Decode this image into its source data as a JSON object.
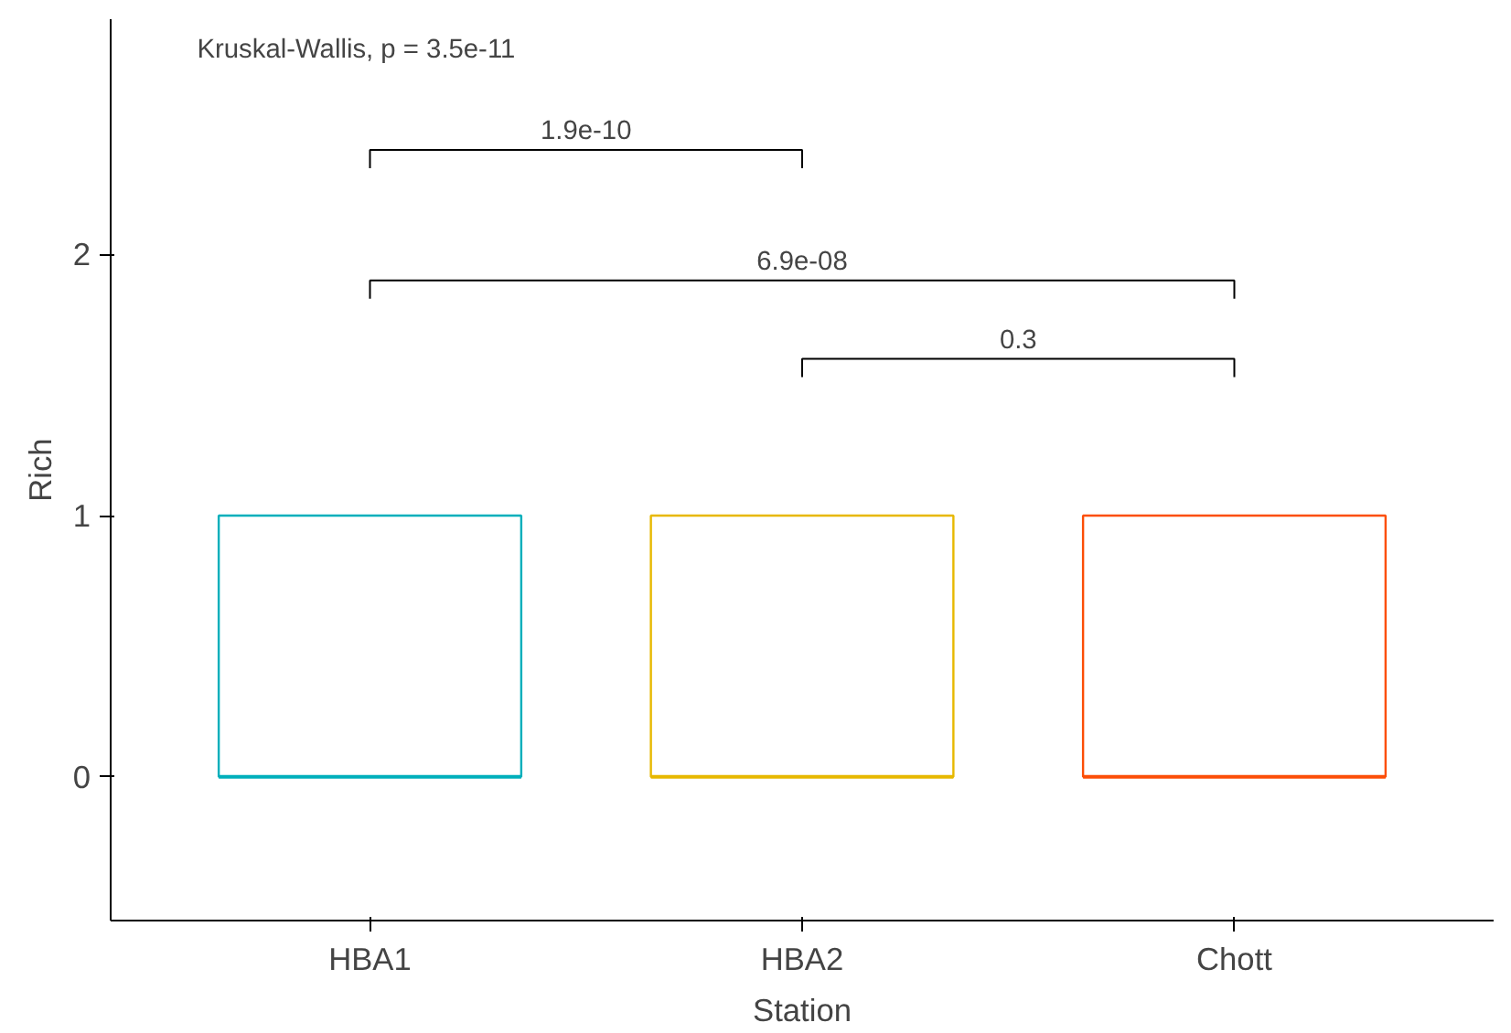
{
  "chart_data": {
    "type": "box",
    "xlabel": "Station",
    "ylabel": "Rich",
    "categories": [
      "HBA1",
      "HBA2",
      "Chott"
    ],
    "colors": [
      "#00afbb",
      "#e7b800",
      "#fc4e07"
    ],
    "boxes": [
      {
        "low": 0,
        "q1": 0,
        "median": 0,
        "q3": 1,
        "high": 1
      },
      {
        "low": 0,
        "q1": 0,
        "median": 0,
        "q3": 1,
        "high": 1
      },
      {
        "low": 0,
        "q1": 0,
        "median": 0,
        "q3": 1,
        "high": 1
      }
    ],
    "ylim": [
      -0.55,
      2.9
    ],
    "yticks": [
      0,
      1,
      2
    ],
    "grid": false,
    "annotations": [
      "Kruskal-Wallis, p = 3.5e-11",
      "1.9e-10",
      "6.9e-08",
      "0.3"
    ]
  }
}
